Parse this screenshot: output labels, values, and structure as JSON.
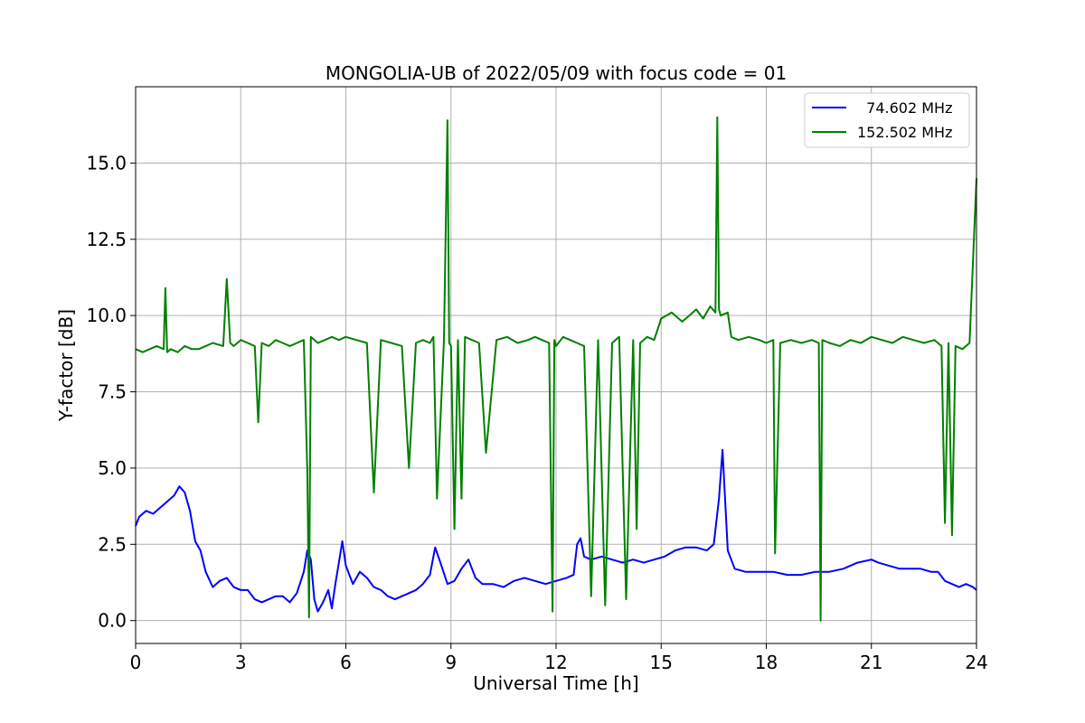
{
  "chart_data": {
    "type": "line",
    "title": "MONGOLIA-UB of 2022/05/09 with focus code = 01",
    "xlabel": "Universal Time [h]",
    "ylabel": "Y-factor [dB]",
    "xlim": [
      0,
      24
    ],
    "ylim": [
      -0.75,
      17.5
    ],
    "xticks": [
      0,
      3,
      6,
      9,
      12,
      15,
      18,
      21,
      24
    ],
    "xtick_labels": [
      "0",
      "3",
      "6",
      "9",
      "12",
      "15",
      "18",
      "21",
      "24"
    ],
    "yticks": [
      0,
      2.5,
      5,
      7.5,
      10,
      12.5,
      15
    ],
    "ytick_labels": [
      "0.0",
      "2.5",
      "5.0",
      "7.5",
      "10.0",
      "12.5",
      "15.0"
    ],
    "grid": true,
    "legend_position": "top-right",
    "series": [
      {
        "name": "  74.602 MHz",
        "color": "#0000ff",
        "x": [
          0,
          0.1,
          0.3,
          0.5,
          0.7,
          0.9,
          1.1,
          1.25,
          1.4,
          1.55,
          1.7,
          1.85,
          2.0,
          2.2,
          2.4,
          2.6,
          2.8,
          3.0,
          3.2,
          3.4,
          3.6,
          3.8,
          4.0,
          4.2,
          4.4,
          4.6,
          4.8,
          4.9,
          5.0,
          5.1,
          5.2,
          5.35,
          5.5,
          5.6,
          5.7,
          5.8,
          5.9,
          6.0,
          6.2,
          6.4,
          6.6,
          6.8,
          7.0,
          7.2,
          7.4,
          7.6,
          7.8,
          8.0,
          8.2,
          8.4,
          8.55,
          8.7,
          8.9,
          9.1,
          9.3,
          9.5,
          9.7,
          9.9,
          10.2,
          10.5,
          10.8,
          11.1,
          11.4,
          11.7,
          12.0,
          12.3,
          12.5,
          12.6,
          12.7,
          12.8,
          13.0,
          13.3,
          13.6,
          13.9,
          14.2,
          14.5,
          14.8,
          15.1,
          15.4,
          15.7,
          16.0,
          16.3,
          16.5,
          16.65,
          16.75,
          16.9,
          17.1,
          17.4,
          17.8,
          18.2,
          18.6,
          19.0,
          19.4,
          19.8,
          20.2,
          20.6,
          21.0,
          21.2,
          21.5,
          21.8,
          22.1,
          22.4,
          22.7,
          22.9,
          23.1,
          23.3,
          23.5,
          23.7,
          23.9,
          24.0
        ],
        "y": [
          3.1,
          3.4,
          3.6,
          3.5,
          3.7,
          3.9,
          4.1,
          4.4,
          4.2,
          3.6,
          2.6,
          2.3,
          1.6,
          1.1,
          1.3,
          1.4,
          1.1,
          1.0,
          1.0,
          0.7,
          0.6,
          0.7,
          0.8,
          0.8,
          0.6,
          0.9,
          1.6,
          2.3,
          2.0,
          0.7,
          0.3,
          0.6,
          1.0,
          0.4,
          1.2,
          1.9,
          2.6,
          1.8,
          1.2,
          1.6,
          1.4,
          1.1,
          1.0,
          0.8,
          0.7,
          0.8,
          0.9,
          1.0,
          1.2,
          1.5,
          2.4,
          1.9,
          1.2,
          1.3,
          1.7,
          2.0,
          1.4,
          1.2,
          1.2,
          1.1,
          1.3,
          1.4,
          1.3,
          1.2,
          1.3,
          1.4,
          1.5,
          2.5,
          2.7,
          2.1,
          2.0,
          2.1,
          2.0,
          1.9,
          2.0,
          1.9,
          2.0,
          2.1,
          2.3,
          2.4,
          2.4,
          2.3,
          2.5,
          4.0,
          5.6,
          2.3,
          1.7,
          1.6,
          1.6,
          1.6,
          1.5,
          1.5,
          1.6,
          1.6,
          1.7,
          1.9,
          2.0,
          1.9,
          1.8,
          1.7,
          1.7,
          1.7,
          1.6,
          1.6,
          1.3,
          1.2,
          1.1,
          1.2,
          1.1,
          1.0
        ]
      },
      {
        "name": "152.502 MHz",
        "color": "#008000",
        "x": [
          0,
          0.2,
          0.4,
          0.6,
          0.8,
          0.85,
          0.9,
          1.0,
          1.2,
          1.4,
          1.6,
          1.8,
          2.0,
          2.2,
          2.5,
          2.6,
          2.7,
          2.8,
          3.0,
          3.2,
          3.4,
          3.5,
          3.6,
          3.8,
          4.0,
          4.2,
          4.4,
          4.6,
          4.8,
          4.9,
          4.95,
          5.0,
          5.2,
          5.4,
          5.6,
          5.8,
          6.0,
          6.3,
          6.6,
          6.8,
          7.0,
          7.3,
          7.6,
          7.8,
          8.0,
          8.2,
          8.4,
          8.5,
          8.6,
          8.8,
          8.9,
          8.95,
          9.0,
          9.1,
          9.2,
          9.3,
          9.4,
          9.6,
          9.8,
          10.0,
          10.3,
          10.6,
          10.9,
          11.2,
          11.4,
          11.6,
          11.8,
          11.9,
          11.95,
          12.0,
          12.2,
          12.4,
          12.6,
          12.8,
          13.0,
          13.2,
          13.4,
          13.6,
          13.8,
          14.0,
          14.2,
          14.3,
          14.4,
          14.6,
          14.8,
          15.0,
          15.3,
          15.6,
          15.8,
          16.0,
          16.2,
          16.4,
          16.55,
          16.6,
          16.65,
          16.7,
          16.9,
          17.0,
          17.2,
          17.5,
          17.8,
          18.0,
          18.2,
          18.25,
          18.4,
          18.7,
          19.0,
          19.3,
          19.5,
          19.55,
          19.6,
          19.8,
          20.1,
          20.4,
          20.7,
          21.0,
          21.3,
          21.6,
          21.9,
          22.2,
          22.5,
          22.8,
          23.0,
          23.1,
          23.2,
          23.3,
          23.4,
          23.6,
          23.8,
          24.0
        ],
        "y": [
          8.9,
          8.8,
          8.9,
          9.0,
          8.9,
          10.9,
          8.8,
          8.9,
          8.8,
          9.0,
          8.9,
          8.9,
          9.0,
          9.1,
          9.0,
          11.2,
          9.1,
          9.0,
          9.2,
          9.1,
          9.0,
          6.5,
          9.1,
          9.0,
          9.2,
          9.1,
          9.0,
          9.1,
          9.2,
          4.9,
          0.1,
          9.3,
          9.1,
          9.2,
          9.3,
          9.2,
          9.3,
          9.2,
          9.1,
          4.2,
          9.2,
          9.1,
          9.0,
          5.0,
          9.1,
          9.2,
          9.1,
          9.3,
          4.0,
          9.2,
          16.4,
          9.1,
          9.0,
          3.0,
          9.2,
          4.0,
          9.3,
          9.2,
          9.1,
          5.5,
          9.2,
          9.3,
          9.1,
          9.2,
          9.3,
          9.2,
          9.1,
          0.3,
          9.2,
          9.0,
          9.3,
          9.2,
          9.1,
          9.0,
          0.8,
          9.2,
          0.5,
          9.1,
          9.3,
          0.7,
          9.2,
          3.0,
          9.1,
          9.3,
          9.2,
          9.9,
          10.1,
          9.8,
          10.0,
          10.2,
          9.9,
          10.3,
          10.1,
          16.5,
          10.2,
          10.0,
          10.1,
          9.3,
          9.2,
          9.3,
          9.2,
          9.1,
          9.2,
          2.2,
          9.1,
          9.2,
          9.1,
          9.2,
          9.1,
          0.0,
          9.2,
          9.1,
          9.0,
          9.2,
          9.1,
          9.3,
          9.2,
          9.1,
          9.3,
          9.2,
          9.1,
          9.2,
          9.0,
          3.2,
          9.1,
          2.8,
          9.0,
          8.9,
          9.1,
          14.5
        ]
      }
    ]
  }
}
